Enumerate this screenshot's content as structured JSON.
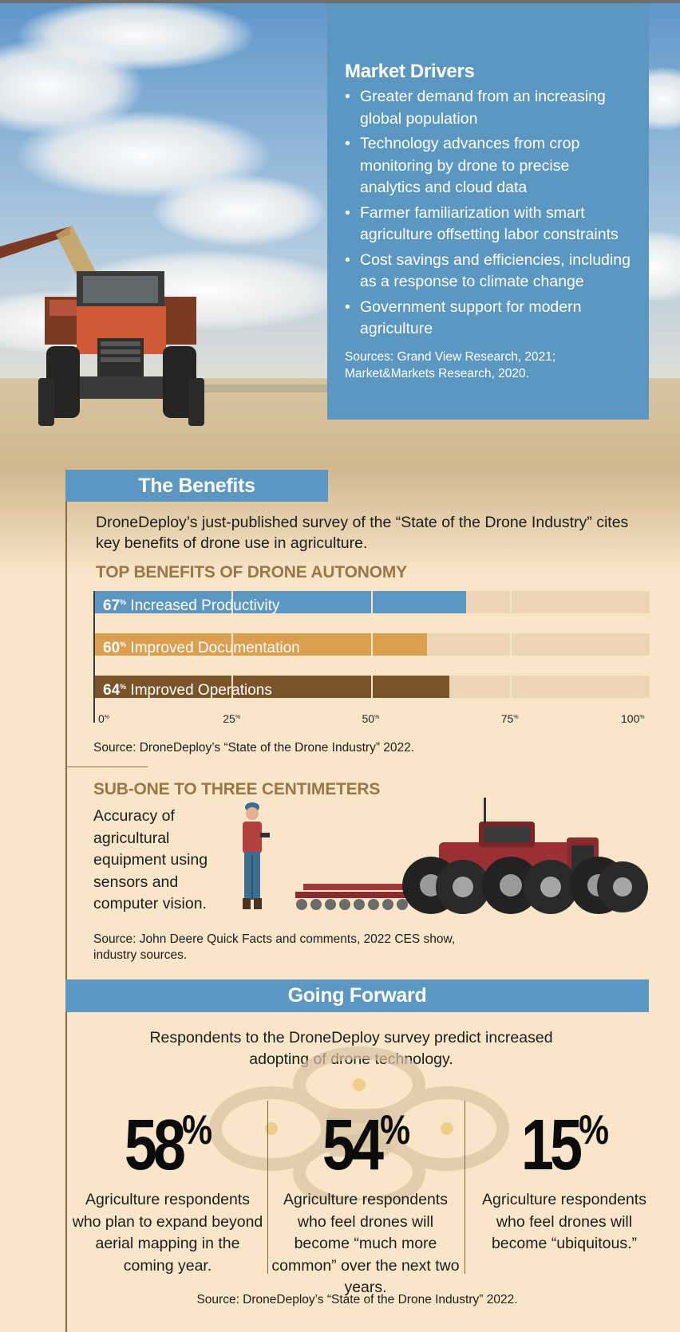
{
  "market_drivers": {
    "title": "Market Drivers",
    "items": [
      "Greater demand from an increasing global population",
      "Technology advances from crop monitoring by drone to precise analytics and cloud data",
      "Farmer familiarization with smart agriculture offsetting labor constraints",
      "Cost savings and efficiencies, including as a response to climate change",
      "Government support for modern agriculture"
    ],
    "sources": "Sources: Grand View Research, 2021; Market&Markets Research, 2020."
  },
  "benefits": {
    "heading": "The Benefits",
    "intro": "DroneDeploy’s just-published survey of the “State of the Drone Industry” cites key benefits of drone use in agriculture.",
    "chart_title": "TOP BENEFITS OF DRONE AUTONOMY",
    "source": "Source: DroneDeploy’s “State of the Drone Industry” 2022."
  },
  "chart_data": {
    "type": "bar",
    "orientation": "horizontal",
    "title": "TOP BENEFITS OF DRONE AUTONOMY",
    "categories": [
      "Increased Productivity",
      "Improved Documentation",
      "Improved Operations"
    ],
    "values": [
      67,
      60,
      64
    ],
    "value_labels": [
      "67",
      "60",
      "64"
    ],
    "unit": "%",
    "colors": [
      "#5b97c0",
      "#dc9f4f",
      "#7a5328"
    ],
    "track_color": "#ecd5b6",
    "xlim": [
      0,
      100
    ],
    "ticks": [
      "0",
      "25",
      "50",
      "75",
      "100"
    ],
    "grid": true
  },
  "accuracy": {
    "title": "SUB-ONE TO THREE CENTIMETERS",
    "text": "Accuracy of agricultural equipment using sensors and computer vision.",
    "source": "Source: John Deere Quick Facts and comments, 2022 CES show, industry sources."
  },
  "forward": {
    "heading": "Going Forward",
    "intro": "Respondents to the DroneDeploy survey predict increased adopting of drone technology.",
    "stats": [
      {
        "value": "58",
        "unit": "%",
        "desc": "Agriculture respondents who plan to expand beyond aerial mapping in the coming year."
      },
      {
        "value": "54",
        "unit": "%",
        "desc": "Agriculture respondents who feel drones will become “much more common” over the next two years."
      },
      {
        "value": "15",
        "unit": "%",
        "desc": "Agriculture respondents who feel drones will become “ubiquitous.”"
      }
    ],
    "source": "Source: DroneDeploy’s “State of the Drone Industry” 2022."
  }
}
